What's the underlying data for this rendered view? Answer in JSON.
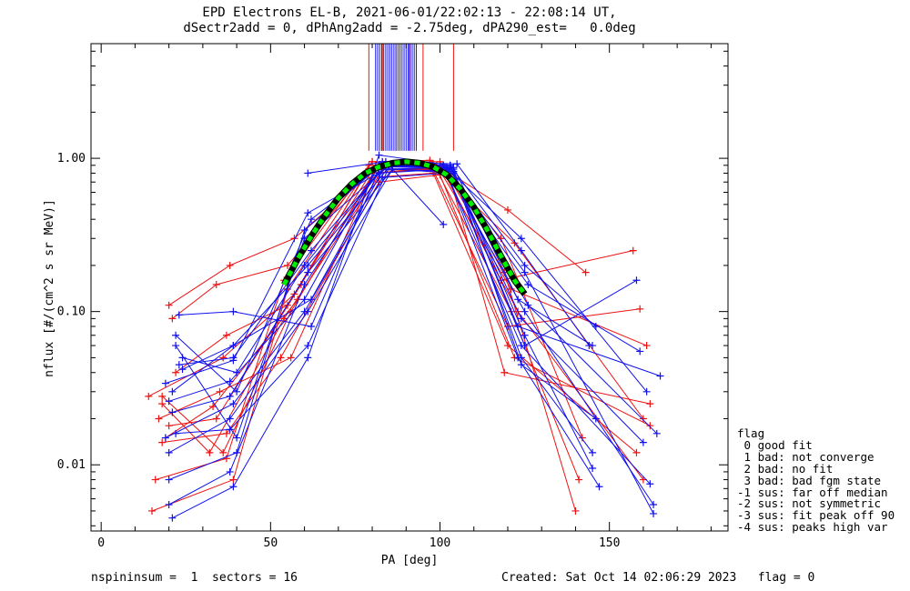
{
  "title": {
    "line1": "EPD Electrons EL-B, 2021-06-01/22:02:13 - 22:08:14 UT,",
    "line2": "dSectr2add = 0, dPhAng2add = -2.75deg, dPA290_est=   0.0deg"
  },
  "footer": {
    "left": "nspininsum =  1  sectors = 16",
    "right": "Created: Sat Oct 14 02:06:29 2023   flag = 0"
  },
  "flag_legend": {
    "title": "flag",
    "items": [
      " 0 good fit",
      " 1 bad: not converge",
      " 2 bad: no fit",
      " 3 bad: bad fgm state",
      "-1 sus: far off median",
      "-2 sus: not symmetric",
      "-3 sus: fit peak off 90",
      "-4 sus: peaks high var"
    ]
  },
  "colors": {
    "red": "#ee1111",
    "blue": "#1111ee",
    "fit_green": "#00ee00",
    "fit_black": "#000000"
  },
  "chart_data": {
    "type": "line",
    "xlabel": "PA [deg]",
    "ylabel": "nflux [#/(cm^2 s sr MeV)]",
    "xlim": [
      -3,
      185
    ],
    "ylim": [
      0.0037,
      5.6
    ],
    "yscale": "log",
    "x_ticks": [
      0,
      50,
      100,
      150
    ],
    "x_tick_labels": [
      "0",
      "50",
      "100",
      "150"
    ],
    "y_ticks": [
      0.01,
      0.1,
      1.0
    ],
    "y_tick_labels": [
      "0.01",
      "0.10",
      "1.00"
    ],
    "grid": false,
    "series": [
      {
        "color": "red",
        "x": [
          15,
          39,
          55,
          80,
          100,
          119,
          140
        ],
        "y": [
          0.005,
          0.008,
          0.14,
          0.95,
          0.95,
          0.18,
          0.005
        ]
      },
      {
        "color": "red",
        "x": [
          16,
          37,
          54,
          79,
          98,
          121,
          141
        ],
        "y": [
          0.008,
          0.011,
          0.16,
          0.9,
          0.92,
          0.1,
          0.008
        ]
      },
      {
        "color": "red",
        "x": [
          18,
          36,
          56,
          81,
          101,
          118,
          142
        ],
        "y": [
          0.028,
          0.012,
          0.1,
          0.85,
          0.85,
          0.3,
          0.015
        ]
      },
      {
        "color": "red",
        "x": [
          20,
          38,
          57,
          83,
          97,
          120,
          143
        ],
        "y": [
          0.11,
          0.2,
          0.3,
          0.95,
          0.97,
          0.46,
          0.18
        ]
      },
      {
        "color": "red",
        "x": [
          21,
          34,
          55,
          78,
          99,
          122,
          160
        ],
        "y": [
          0.09,
          0.15,
          0.2,
          0.8,
          0.85,
          0.28,
          0.02
        ]
      },
      {
        "color": "red",
        "x": [
          19,
          33,
          58,
          82,
          102,
          119,
          162
        ],
        "y": [
          0.015,
          0.024,
          0.12,
          0.9,
          0.88,
          0.04,
          0.025
        ]
      },
      {
        "color": "red",
        "x": [
          17,
          35,
          56,
          80,
          98,
          120,
          158
        ],
        "y": [
          0.02,
          0.03,
          0.05,
          0.75,
          0.8,
          0.06,
          0.012
        ]
      },
      {
        "color": "red",
        "x": [
          18,
          32,
          54,
          84,
          100,
          123,
          160
        ],
        "y": [
          0.025,
          0.012,
          0.09,
          0.9,
          0.9,
          0.1,
          0.008
        ]
      },
      {
        "color": "red",
        "x": [
          14,
          36,
          57,
          79,
          101,
          118,
          157
        ],
        "y": [
          0.028,
          0.05,
          0.13,
          0.85,
          0.82,
          0.16,
          0.25
        ]
      },
      {
        "color": "red",
        "x": [
          22,
          37,
          55,
          81,
          99,
          121,
          161
        ],
        "y": [
          0.04,
          0.07,
          0.11,
          0.9,
          0.9,
          0.14,
          0.06
        ]
      },
      {
        "color": "red",
        "x": [
          20,
          34,
          59,
          80,
          97,
          120,
          159
        ],
        "y": [
          0.018,
          0.02,
          0.15,
          0.95,
          0.93,
          0.08,
          0.104
        ]
      },
      {
        "color": "red",
        "x": [
          18,
          37,
          53,
          82,
          100,
          122,
          162
        ],
        "y": [
          0.014,
          0.016,
          0.05,
          0.7,
          0.78,
          0.05,
          0.018
        ]
      },
      {
        "color": "blue",
        "x": [
          21,
          39,
          61,
          82,
          103,
          124,
          145
        ],
        "y": [
          0.0045,
          0.0072,
          0.05,
          1.05,
          0.9,
          0.05,
          0.012
        ]
      },
      {
        "color": "blue",
        "x": [
          20,
          38,
          60,
          83,
          102,
          125,
          163
        ],
        "y": [
          0.0055,
          0.009,
          0.15,
          0.9,
          0.88,
          0.18,
          0.0048
        ]
      },
      {
        "color": "blue",
        "x": [
          19,
          39,
          61,
          84,
          104,
          123,
          145
        ],
        "y": [
          0.034,
          0.048,
          0.44,
          0.85,
          0.87,
          0.12,
          0.06
        ]
      },
      {
        "color": "blue",
        "x": [
          22,
          40,
          60,
          85,
          103,
          125,
          146
        ],
        "y": [
          0.06,
          0.015,
          0.3,
          0.9,
          0.9,
          0.2,
          0.08
        ]
      },
      {
        "color": "blue",
        "x": [
          23,
          39,
          62,
          83,
          105,
          124,
          144
        ],
        "y": [
          0.095,
          0.1,
          0.08,
          0.95,
          0.92,
          0.25,
          0.06
        ]
      },
      {
        "color": "blue",
        "x": [
          20,
          38,
          61,
          86,
          104,
          125,
          158
        ],
        "y": [
          0.012,
          0.02,
          0.1,
          0.85,
          0.8,
          0.06,
          0.16
        ]
      },
      {
        "color": "blue",
        "x": [
          24,
          40,
          60,
          82,
          102,
          126,
          159
        ],
        "y": [
          0.05,
          0.04,
          0.2,
          0.8,
          0.85,
          0.15,
          0.055
        ]
      },
      {
        "color": "blue",
        "x": [
          21,
          39,
          62,
          84,
          103,
          123,
          165
        ],
        "y": [
          0.03,
          0.06,
          0.12,
          0.9,
          0.9,
          0.08,
          0.038
        ]
      },
      {
        "color": "blue",
        "x": [
          22,
          38,
          61,
          85,
          101,
          124,
          162
        ],
        "y": [
          0.016,
          0.017,
          0.06,
          0.88,
          0.9,
          0.06,
          0.0075
        ]
      },
      {
        "color": "blue",
        "x": [
          20,
          40,
          60,
          83,
          102,
          125,
          163
        ],
        "y": [
          0.008,
          0.012,
          0.34,
          0.92,
          0.85,
          0.1,
          0.0055
        ]
      },
      {
        "color": "blue",
        "x": [
          23,
          39,
          62,
          84,
          103,
          124,
          160
        ],
        "y": [
          0.045,
          0.05,
          0.25,
          0.9,
          0.88,
          0.09,
          0.014
        ]
      },
      {
        "color": "blue",
        "x": [
          21,
          38,
          61,
          86,
          104,
          125,
          145
        ],
        "y": [
          0.022,
          0.028,
          0.18,
          0.85,
          0.82,
          0.07,
          0.0095
        ]
      },
      {
        "color": "blue",
        "x": [
          19,
          39,
          60,
          83,
          102,
          123,
          147
        ],
        "y": [
          0.015,
          0.025,
          0.1,
          0.75,
          0.8,
          0.05,
          0.0072
        ]
      },
      {
        "color": "blue",
        "x": [
          22,
          40,
          62,
          84,
          101,
          124,
          161
        ],
        "y": [
          0.07,
          0.03,
          0.4,
          0.95,
          0.9,
          0.3,
          0.03
        ]
      },
      {
        "color": "blue",
        "x": [
          24,
          39,
          61,
          85,
          103,
          126,
          164
        ],
        "y": [
          0.042,
          0.06,
          0.2,
          0.88,
          0.86,
          0.11,
          0.016
        ]
      },
      {
        "color": "blue",
        "x": [
          61,
          84,
          101
        ],
        "y": [
          0.8,
          0.95,
          0.37
        ]
      },
      {
        "color": "blue",
        "x": [
          20,
          38,
          60,
          82,
          104,
          124,
          146
        ],
        "y": [
          0.026,
          0.035,
          0.12,
          0.9,
          0.85,
          0.045,
          0.02
        ]
      }
    ],
    "fit_curve": {
      "x": [
        54,
        58,
        62,
        66,
        70,
        74,
        78,
        82,
        86,
        90,
        94,
        98,
        102,
        106,
        110,
        114,
        118,
        122,
        125
      ],
      "y": [
        0.15,
        0.22,
        0.31,
        0.42,
        0.55,
        0.68,
        0.8,
        0.88,
        0.93,
        0.95,
        0.93,
        0.88,
        0.78,
        0.63,
        0.48,
        0.34,
        0.23,
        0.16,
        0.13
      ]
    },
    "vertical_lines": [
      {
        "color": "red",
        "x": [
          79,
          83,
          87,
          91,
          95,
          104
        ]
      },
      {
        "color": "blue",
        "x": [
          81,
          81.6,
          82.2,
          82.8,
          83.4,
          84,
          84.6,
          85.2,
          85.8,
          86.4,
          87,
          87.6,
          88.2,
          88.8,
          89.4,
          90,
          90.6,
          91.2,
          91.8,
          92.4,
          93
        ]
      }
    ]
  }
}
